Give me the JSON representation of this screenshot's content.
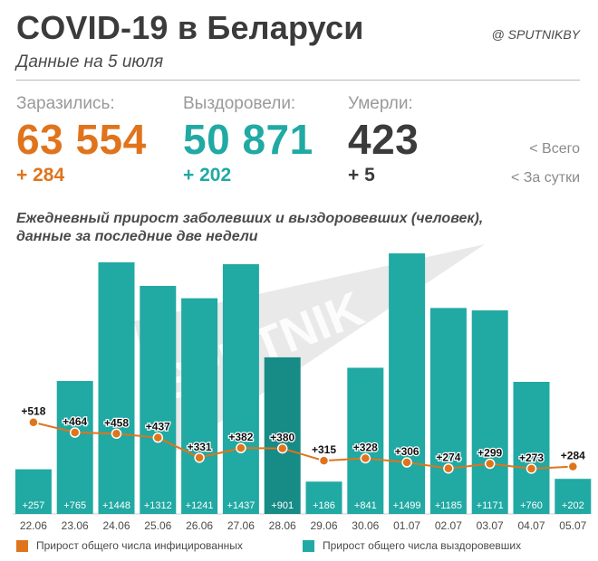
{
  "header": {
    "title": "COVID-19 в Беларуси",
    "handle": "@ SPUTNIKBY",
    "subtitle": "Данные на 5 июля"
  },
  "stats": {
    "infected": {
      "label": "Заразились:",
      "total": "63 554",
      "daily": "+ 284"
    },
    "recovered": {
      "label": "Выздоровели:",
      "total": "50 871",
      "daily": "+ 202"
    },
    "died": {
      "label": "Умерли:",
      "total": "423",
      "daily": "+ 5"
    },
    "total_note": "<  Всего",
    "daily_note": "<  За сутки"
  },
  "watermark": "SPUTNIK",
  "colors": {
    "infected": "#e0741c",
    "recovered": "#21a9a3",
    "recovered_dark": "#178b86",
    "watermark": "#d7d7d7"
  },
  "chart_data": {
    "type": "bar",
    "title": "Ежедневный прирост заболевших и выздоровевших (человек), данные за последние две недели",
    "categories": [
      "22.06",
      "23.06",
      "24.06",
      "25.06",
      "26.06",
      "27.06",
      "28.06",
      "29.06",
      "30.06",
      "01.07",
      "02.07",
      "03.07",
      "04.07",
      "05.07"
    ],
    "series": [
      {
        "name": "Прирост общего числа выздоровевших",
        "kind": "bar",
        "values": [
          257,
          765,
          1448,
          1312,
          1241,
          1437,
          901,
          186,
          841,
          1499,
          1185,
          1171,
          760,
          202
        ]
      },
      {
        "name": "Прирост общего числа инфицированных",
        "kind": "line",
        "values": [
          518,
          464,
          458,
          437,
          331,
          382,
          380,
          315,
          328,
          306,
          274,
          299,
          273,
          284
        ]
      }
    ],
    "bar_labels": [
      "+257",
      "+765",
      "+1448",
      "+1312",
      "+1241",
      "+1437",
      "+901",
      "+186",
      "+841",
      "+1499",
      "+1185",
      "+1171",
      "+760",
      "+202"
    ],
    "line_labels": [
      "+518",
      "+464",
      "+458",
      "+437",
      "+331",
      "+382",
      "+380",
      "+315",
      "+328",
      "+306",
      "+274",
      "+299",
      "+273",
      "+284"
    ],
    "grid": false,
    "legend_position": "bottom"
  }
}
